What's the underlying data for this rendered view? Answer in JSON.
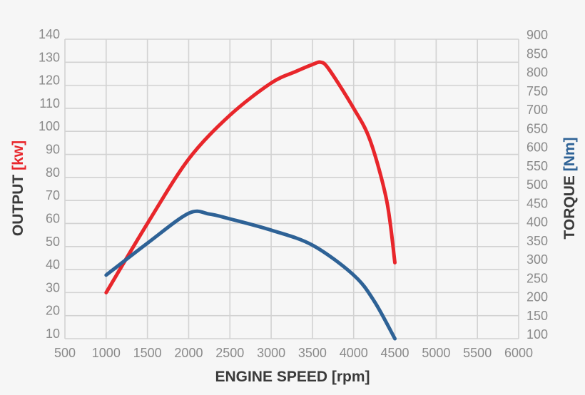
{
  "chart_data": {
    "type": "line",
    "x_axis": {
      "label": "ENGINE SPEED",
      "unit": "[rpm]",
      "range": [
        500,
        6000
      ],
      "ticks": [
        500,
        1000,
        1500,
        2000,
        2500,
        3000,
        3500,
        4000,
        4500,
        5000,
        5500,
        6000
      ]
    },
    "y_axis_left": {
      "label": "OUTPUT",
      "unit": "[kw]",
      "range": [
        10,
        140
      ],
      "ticks": [
        10,
        20,
        30,
        40,
        50,
        60,
        70,
        80,
        90,
        100,
        110,
        120,
        130,
        140
      ]
    },
    "y_axis_right": {
      "label": "TORQUE",
      "unit": "[Nm]",
      "range": [
        100,
        900
      ],
      "ticks": [
        100,
        150,
        200,
        250,
        300,
        350,
        400,
        450,
        500,
        550,
        600,
        650,
        700,
        750,
        800,
        850,
        900
      ]
    },
    "grid": true,
    "series": [
      {
        "axis": "left",
        "color": "#e8262b",
        "points": [
          [
            1000,
            30
          ],
          [
            1500,
            60
          ],
          [
            2000,
            88
          ],
          [
            2500,
            107
          ],
          [
            3000,
            121
          ],
          [
            3300,
            126
          ],
          [
            3500,
            129
          ],
          [
            3600,
            130
          ],
          [
            3700,
            127
          ],
          [
            4000,
            110
          ],
          [
            4200,
            96
          ],
          [
            4400,
            70
          ],
          [
            4500,
            43
          ]
        ]
      },
      {
        "axis": "right",
        "color": "#2e6296",
        "points": [
          [
            1000,
            270
          ],
          [
            1500,
            355
          ],
          [
            2000,
            435
          ],
          [
            2250,
            433
          ],
          [
            2500,
            420
          ],
          [
            3000,
            390
          ],
          [
            3500,
            350
          ],
          [
            4000,
            270
          ],
          [
            4250,
            200
          ],
          [
            4500,
            100
          ]
        ]
      }
    ]
  }
}
